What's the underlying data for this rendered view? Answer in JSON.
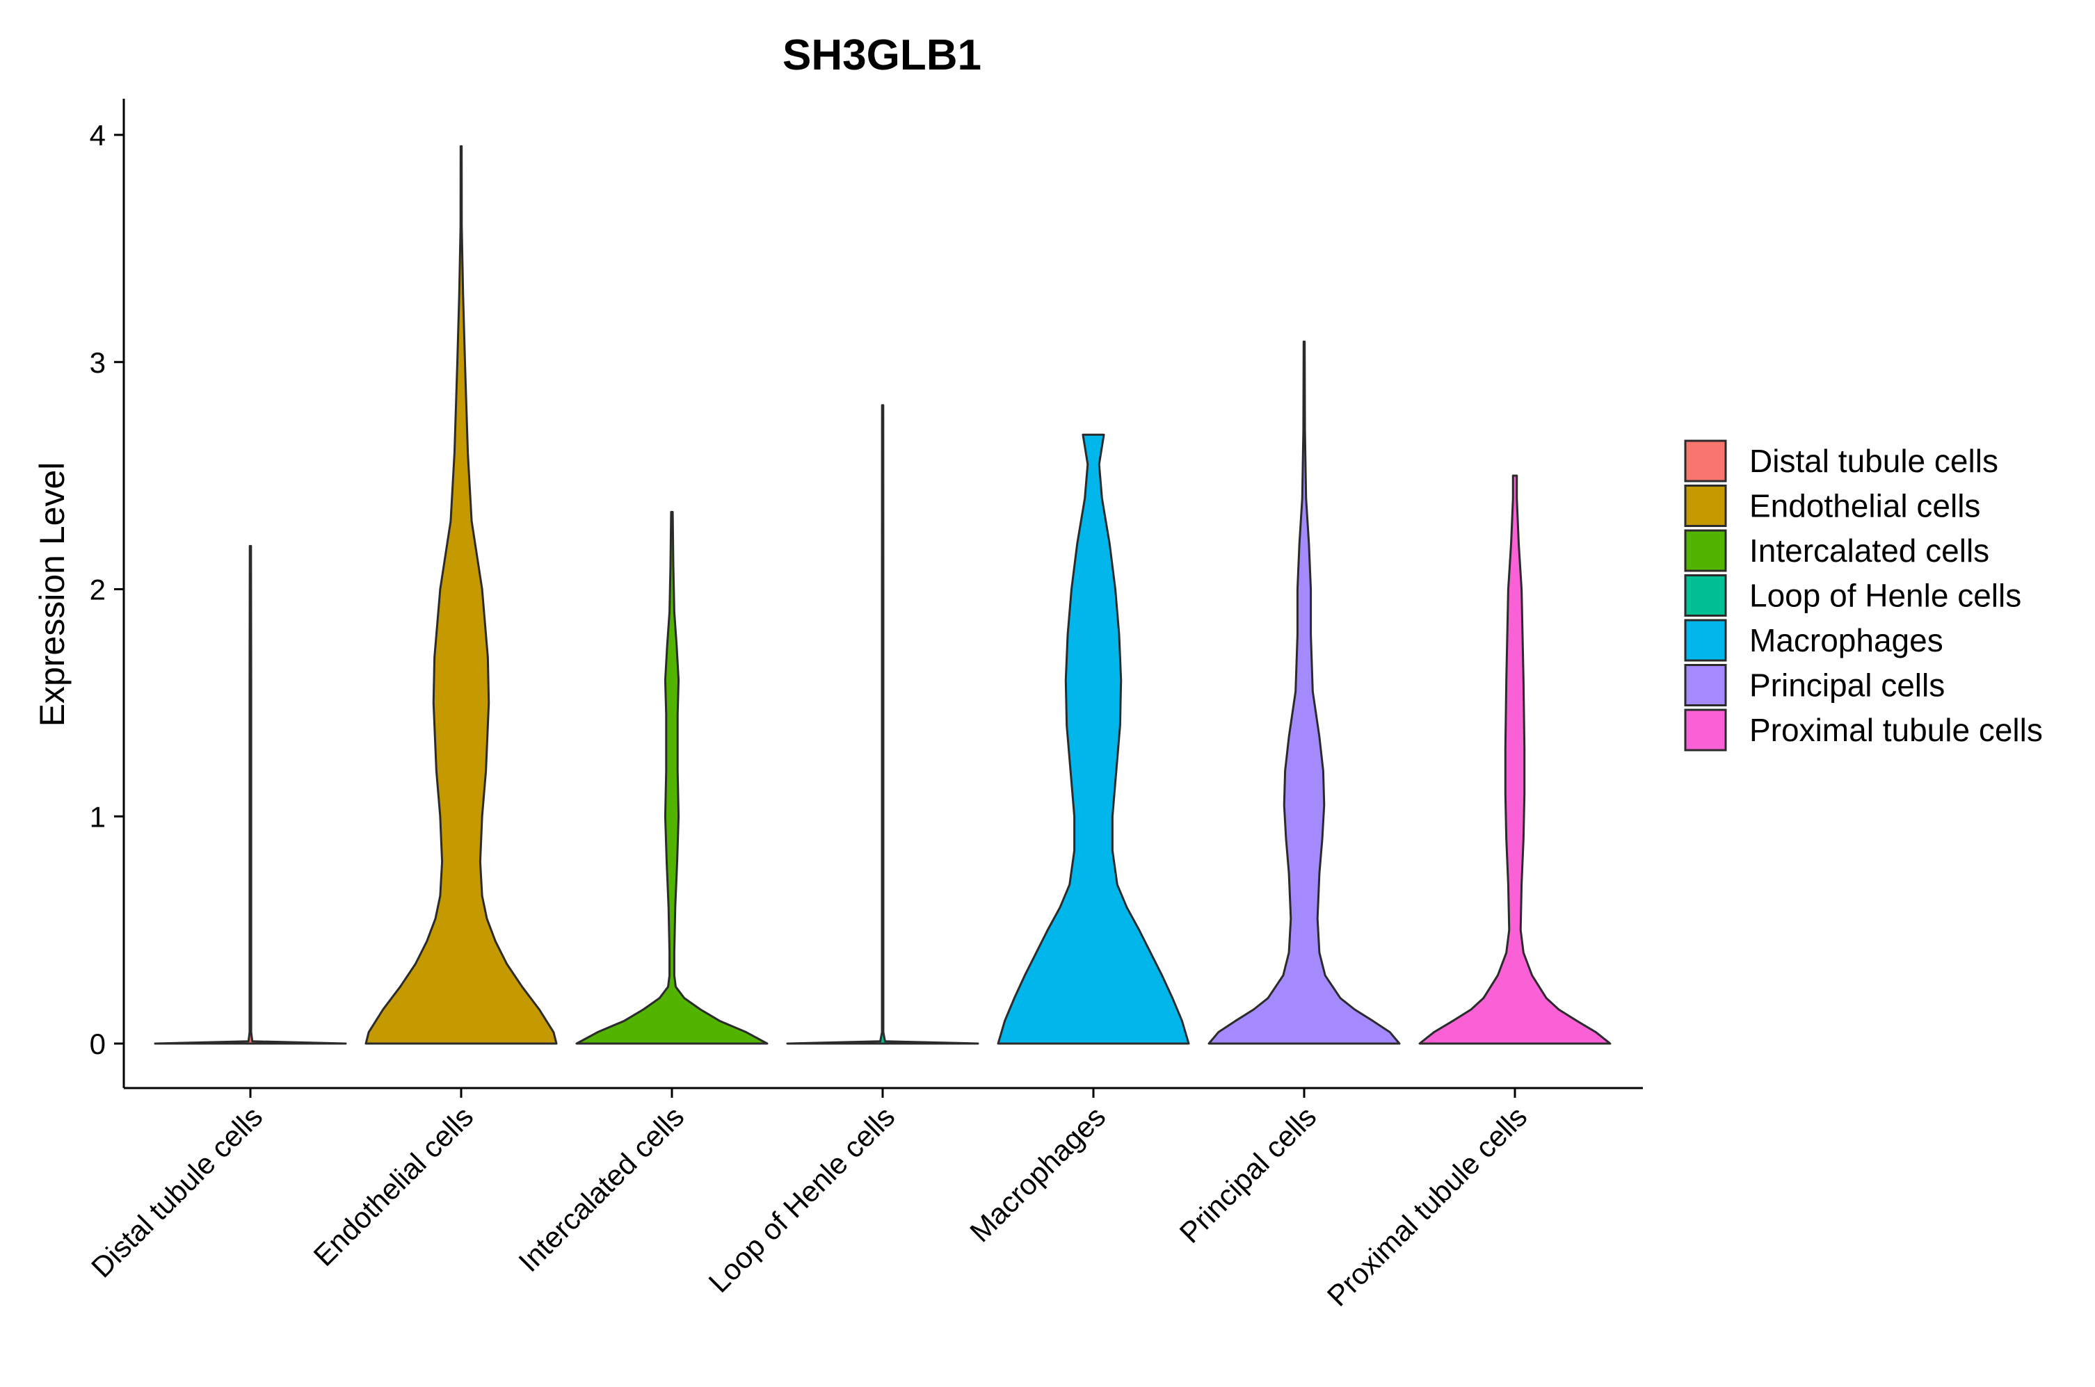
{
  "chart_data": {
    "type": "violin",
    "title": "SH3GLB1",
    "xlabel": "",
    "ylabel": "Expression Level",
    "ylim": [
      -0.2,
      4.15
    ],
    "yticks": [
      0,
      1,
      2,
      3,
      4
    ],
    "grid": false,
    "legend_position": "right",
    "categories": [
      "Distal tubule cells",
      "Endothelial cells",
      "Intercalated cells",
      "Loop of Henle cells",
      "Macrophages",
      "Principal cells",
      "Proximal tubule cells"
    ],
    "colors": [
      "#F8766D",
      "#C49A00",
      "#53B400",
      "#00C094",
      "#00B6EB",
      "#A58AFF",
      "#FB61D7"
    ],
    "violins": [
      {
        "name": "Distal tubule cells",
        "max": 2.19,
        "profile": [
          [
            0,
            1.0
          ],
          [
            0.01,
            0.02
          ],
          [
            0.05,
            0.008
          ],
          [
            0.3,
            0.008
          ],
          [
            1.0,
            0.008
          ],
          [
            1.6,
            0.008
          ],
          [
            2.19,
            0.006
          ]
        ]
      },
      {
        "name": "Endothelial cells",
        "max": 3.95,
        "profile": [
          [
            0,
            1.0
          ],
          [
            0.05,
            0.97
          ],
          [
            0.15,
            0.82
          ],
          [
            0.25,
            0.64
          ],
          [
            0.35,
            0.48
          ],
          [
            0.45,
            0.36
          ],
          [
            0.55,
            0.27
          ],
          [
            0.65,
            0.22
          ],
          [
            0.8,
            0.2
          ],
          [
            1.0,
            0.22
          ],
          [
            1.2,
            0.26
          ],
          [
            1.5,
            0.29
          ],
          [
            1.7,
            0.28
          ],
          [
            2.0,
            0.22
          ],
          [
            2.3,
            0.11
          ],
          [
            2.6,
            0.07
          ],
          [
            3.0,
            0.04
          ],
          [
            3.3,
            0.02
          ],
          [
            3.6,
            0.006
          ],
          [
            3.95,
            0.005
          ]
        ]
      },
      {
        "name": "Intercalated cells",
        "max": 2.34,
        "profile": [
          [
            0,
            1.0
          ],
          [
            0.05,
            0.78
          ],
          [
            0.1,
            0.5
          ],
          [
            0.15,
            0.3
          ],
          [
            0.2,
            0.13
          ],
          [
            0.25,
            0.04
          ],
          [
            0.3,
            0.025
          ],
          [
            0.4,
            0.025
          ],
          [
            0.6,
            0.035
          ],
          [
            0.8,
            0.055
          ],
          [
            1.0,
            0.07
          ],
          [
            1.2,
            0.06
          ],
          [
            1.45,
            0.06
          ],
          [
            1.6,
            0.07
          ],
          [
            1.75,
            0.05
          ],
          [
            1.9,
            0.025
          ],
          [
            2.1,
            0.015
          ],
          [
            2.34,
            0.008
          ]
        ]
      },
      {
        "name": "Loop of Henle cells",
        "max": 2.81,
        "profile": [
          [
            0,
            1.0
          ],
          [
            0.01,
            0.025
          ],
          [
            0.05,
            0.007
          ],
          [
            1.0,
            0.007
          ],
          [
            2.0,
            0.007
          ],
          [
            2.81,
            0.006
          ]
        ]
      },
      {
        "name": "Macrophages",
        "max": 2.68,
        "profile": [
          [
            0,
            1.0
          ],
          [
            0.1,
            0.93
          ],
          [
            0.2,
            0.83
          ],
          [
            0.3,
            0.72
          ],
          [
            0.4,
            0.6
          ],
          [
            0.5,
            0.48
          ],
          [
            0.6,
            0.35
          ],
          [
            0.7,
            0.25
          ],
          [
            0.85,
            0.2
          ],
          [
            1.0,
            0.2
          ],
          [
            1.2,
            0.24
          ],
          [
            1.4,
            0.28
          ],
          [
            1.6,
            0.29
          ],
          [
            1.8,
            0.27
          ],
          [
            2.0,
            0.23
          ],
          [
            2.2,
            0.17
          ],
          [
            2.4,
            0.09
          ],
          [
            2.55,
            0.06
          ],
          [
            2.68,
            0.11
          ]
        ]
      },
      {
        "name": "Principal cells",
        "max": 3.09,
        "profile": [
          [
            0,
            1.0
          ],
          [
            0.05,
            0.9
          ],
          [
            0.1,
            0.72
          ],
          [
            0.15,
            0.53
          ],
          [
            0.2,
            0.38
          ],
          [
            0.3,
            0.22
          ],
          [
            0.4,
            0.16
          ],
          [
            0.55,
            0.14
          ],
          [
            0.75,
            0.16
          ],
          [
            0.9,
            0.19
          ],
          [
            1.05,
            0.21
          ],
          [
            1.2,
            0.2
          ],
          [
            1.35,
            0.16
          ],
          [
            1.55,
            0.09
          ],
          [
            1.8,
            0.07
          ],
          [
            2.0,
            0.07
          ],
          [
            2.2,
            0.05
          ],
          [
            2.4,
            0.02
          ],
          [
            2.7,
            0.008
          ],
          [
            3.09,
            0.005
          ]
        ]
      },
      {
        "name": "Proximal tubule cells",
        "max": 2.5,
        "profile": [
          [
            0,
            1.0
          ],
          [
            0.05,
            0.85
          ],
          [
            0.1,
            0.65
          ],
          [
            0.15,
            0.46
          ],
          [
            0.2,
            0.33
          ],
          [
            0.3,
            0.18
          ],
          [
            0.4,
            0.09
          ],
          [
            0.5,
            0.06
          ],
          [
            0.7,
            0.07
          ],
          [
            0.9,
            0.09
          ],
          [
            1.1,
            0.1
          ],
          [
            1.3,
            0.1
          ],
          [
            1.6,
            0.09
          ],
          [
            1.8,
            0.08
          ],
          [
            2.0,
            0.07
          ],
          [
            2.2,
            0.04
          ],
          [
            2.4,
            0.02
          ],
          [
            2.5,
            0.02
          ]
        ]
      }
    ]
  }
}
